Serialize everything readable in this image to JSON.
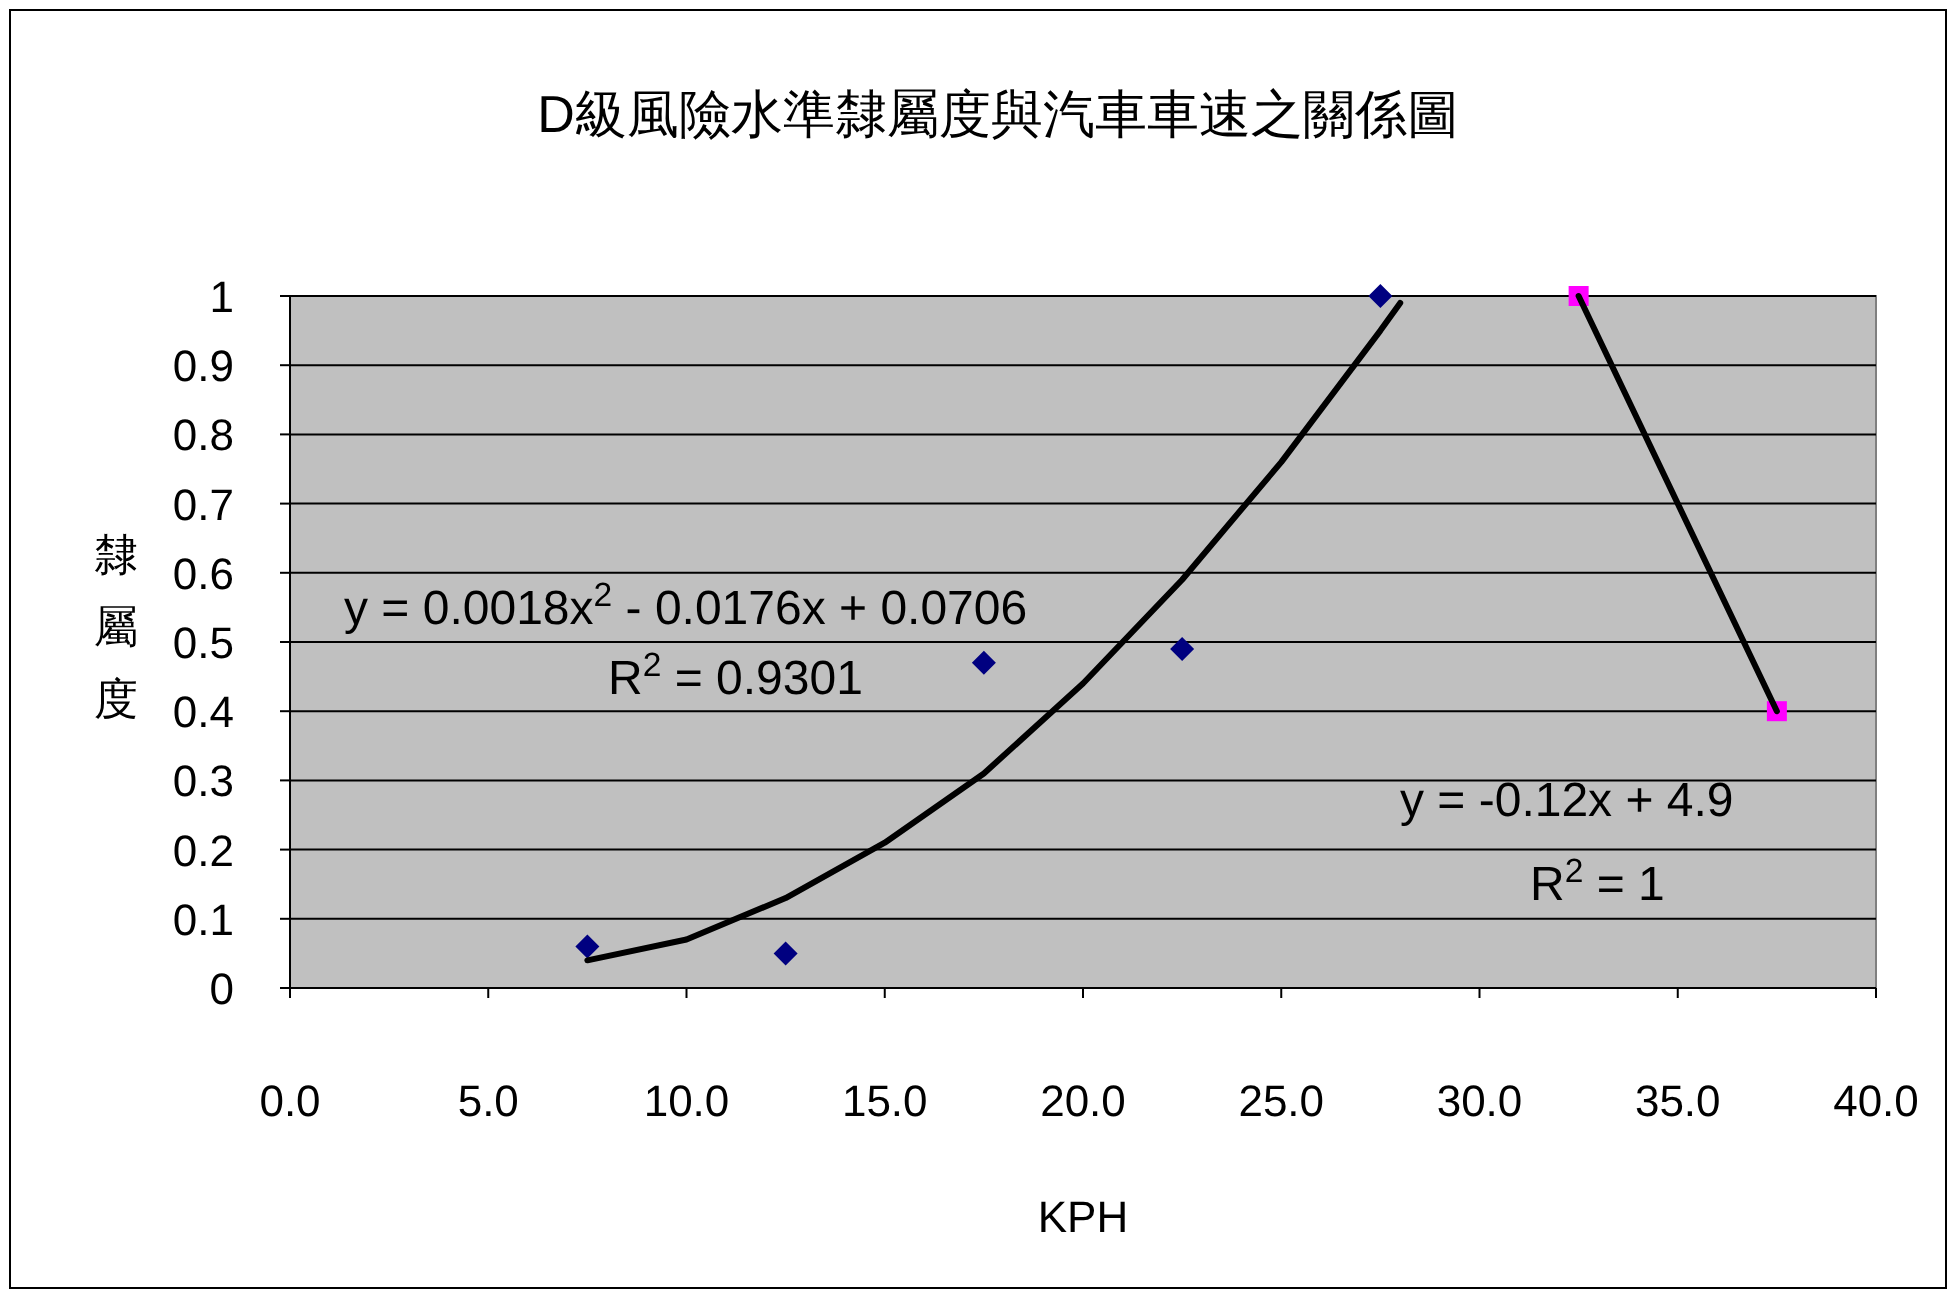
{
  "chart_data": {
    "type": "scatter",
    "title": "D級風險水準隸屬度與汽車車速之關係圖",
    "xlabel": "KPH",
    "ylabel": "隸屬度",
    "xlim": [
      0,
      40
    ],
    "xticks": [
      {
        "value": 0,
        "label": "0.0"
      },
      {
        "value": 5,
        "label": "5.0"
      },
      {
        "value": 10,
        "label": "10.0"
      },
      {
        "value": 15,
        "label": "15.0"
      },
      {
        "value": 20,
        "label": "20.0"
      },
      {
        "value": 25,
        "label": "25.0"
      },
      {
        "value": 30,
        "label": "30.0"
      },
      {
        "value": 35,
        "label": "35.0"
      },
      {
        "value": 40,
        "label": "40.0"
      }
    ],
    "ylim": [
      0,
      1
    ],
    "yticks": [
      0,
      0.1,
      0.2,
      0.3,
      0.4,
      0.5,
      0.6,
      0.7,
      0.8,
      0.9,
      1
    ],
    "grid": "y",
    "series": [
      {
        "marker": "diamond",
        "color": "#000080",
        "x": [
          7.5,
          12.5,
          17.5,
          22.5,
          27.5
        ],
        "values": [
          0.06,
          0.05,
          0.47,
          0.49,
          1.0
        ]
      },
      {
        "marker": "square",
        "color": "#ff00ff",
        "x": [
          32.5,
          37.5
        ],
        "values": [
          1.0,
          0.4
        ]
      },
      {
        "type": "line",
        "marker": "none",
        "color": "#000000",
        "x": [
          7.5,
          10,
          12.5,
          15,
          17.5,
          20,
          22.5,
          25,
          27.5,
          28
        ],
        "values": [
          0.04,
          0.07,
          0.13,
          0.21,
          0.31,
          0.44,
          0.59,
          0.76,
          0.95,
          0.99
        ]
      },
      {
        "type": "line",
        "marker": "none",
        "color": "#000000",
        "x": [
          32.5,
          37.5
        ],
        "values": [
          1.0,
          0.4
        ]
      }
    ],
    "annotations": [
      "y = 0.0018x$^{2}$ - 0.0176x + 0.0706",
      "R$^{2}$ = 0.9301",
      "y = -0.12x + 4.9",
      "R$^{2}$ = 1"
    ]
  }
}
